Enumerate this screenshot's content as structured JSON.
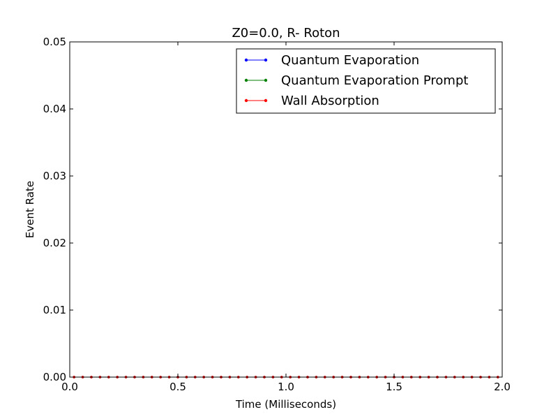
{
  "chart_data": {
    "type": "line",
    "title": "Z0=0.0, R- Roton",
    "xlabel": "Time (Milliseconds)",
    "ylabel": "Event Rate",
    "xlim": [
      0.0,
      2.0
    ],
    "ylim": [
      0.0,
      0.05
    ],
    "xticks": [
      0.0,
      0.5,
      1.0,
      1.5,
      2.0
    ],
    "xtick_labels": [
      "0.0",
      "0.5",
      "1.0",
      "1.5",
      "2.0"
    ],
    "yticks": [
      0.0,
      0.01,
      0.02,
      0.03,
      0.04,
      0.05
    ],
    "ytick_labels": [
      "0.00",
      "0.01",
      "0.02",
      "0.03",
      "0.04",
      "0.05"
    ],
    "grid": false,
    "legend_position": "top-right",
    "x": [
      0.02,
      0.06,
      0.1,
      0.14,
      0.18,
      0.22,
      0.26,
      0.3,
      0.34,
      0.38,
      0.42,
      0.46,
      0.5,
      0.54,
      0.58,
      0.62,
      0.66,
      0.7,
      0.74,
      0.78,
      0.82,
      0.86,
      0.9,
      0.94,
      0.98,
      1.02,
      1.06,
      1.1,
      1.14,
      1.18,
      1.22,
      1.26,
      1.3,
      1.34,
      1.38,
      1.42,
      1.46,
      1.5,
      1.54,
      1.58,
      1.62,
      1.66,
      1.7,
      1.74,
      1.78,
      1.82,
      1.86,
      1.9,
      1.94,
      1.98
    ],
    "series": [
      {
        "name": "Quantum Evaporation",
        "color": "#0000ff",
        "values": [
          0,
          0,
          0,
          0,
          0,
          0,
          0,
          0,
          0,
          0,
          0,
          0,
          0,
          0,
          0,
          0,
          0,
          0,
          0,
          0,
          0,
          0,
          0,
          0,
          0,
          0,
          0,
          0,
          0,
          0,
          0,
          0,
          0,
          0,
          0,
          0,
          0,
          0,
          0,
          0,
          0,
          0,
          0,
          0,
          0,
          0,
          0,
          0,
          0,
          0
        ]
      },
      {
        "name": "Quantum Evaporation Prompt",
        "color": "#008000",
        "values": [
          0,
          0,
          0,
          0,
          0,
          0,
          0,
          0,
          0,
          0,
          0,
          0,
          0,
          0,
          0,
          0,
          0,
          0,
          0,
          0,
          0,
          0,
          0,
          0,
          0,
          0,
          0,
          0,
          0,
          0,
          0,
          0,
          0,
          0,
          0,
          0,
          0,
          0,
          0,
          0,
          0,
          0,
          0,
          0,
          0,
          0,
          0,
          0,
          0,
          0
        ]
      },
      {
        "name": "Wall Absorption",
        "color": "#ff0000",
        "values": [
          0,
          0,
          0,
          0,
          0,
          0,
          0,
          0,
          0,
          0,
          0,
          0,
          0,
          0,
          0,
          0,
          0,
          0,
          0,
          0,
          0,
          0,
          0,
          0,
          0,
          0,
          0,
          0,
          0,
          0,
          0,
          0,
          0,
          0,
          0,
          0,
          0,
          0,
          0,
          0,
          0,
          0,
          0,
          0,
          0,
          0,
          0,
          0,
          0,
          0
        ]
      }
    ]
  }
}
